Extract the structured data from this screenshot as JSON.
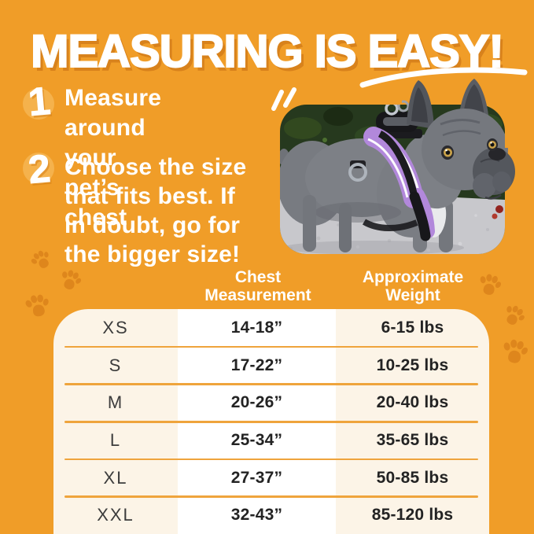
{
  "colors": {
    "background": "#F09D28",
    "accent_dark_orange": "#DE861C",
    "title_shadow": "#D8821C",
    "step_badge": "#F5B24C",
    "table_background": "#FCF4E7",
    "table_stripe": "#FFFFFF",
    "row_divider": "#EFA43C",
    "text_dark": "#232323",
    "text_white": "#FFFFFF",
    "harness_purple": "#B288DB"
  },
  "title": "MEASURING IS EASY!",
  "steps": [
    {
      "number": "1",
      "text": "Measure around\nyour pet’s chest"
    },
    {
      "number": "2",
      "text": "Choose the size\nthat fits best. If\nin doubt, go for\nthe bigger size!"
    }
  ],
  "table": {
    "columns": [
      {
        "key": "size",
        "label": ""
      },
      {
        "key": "chest",
        "label": "Chest\nMeasurement"
      },
      {
        "key": "weight",
        "label": "Approximate\nWeight"
      }
    ],
    "rows": [
      {
        "size": "XS",
        "chest": "14-18”",
        "weight": "6-15 lbs"
      },
      {
        "size": "S",
        "chest": "17-22”",
        "weight": "10-25 lbs"
      },
      {
        "size": "M",
        "chest": "20-26”",
        "weight": "20-40 lbs"
      },
      {
        "size": "L",
        "chest": "25-34”",
        "weight": "35-65 lbs"
      },
      {
        "size": "XL",
        "chest": "27-37”",
        "weight": "50-85 lbs"
      },
      {
        "size": "XXL",
        "chest": "32-43”",
        "weight": "85-120 lbs"
      }
    ]
  }
}
